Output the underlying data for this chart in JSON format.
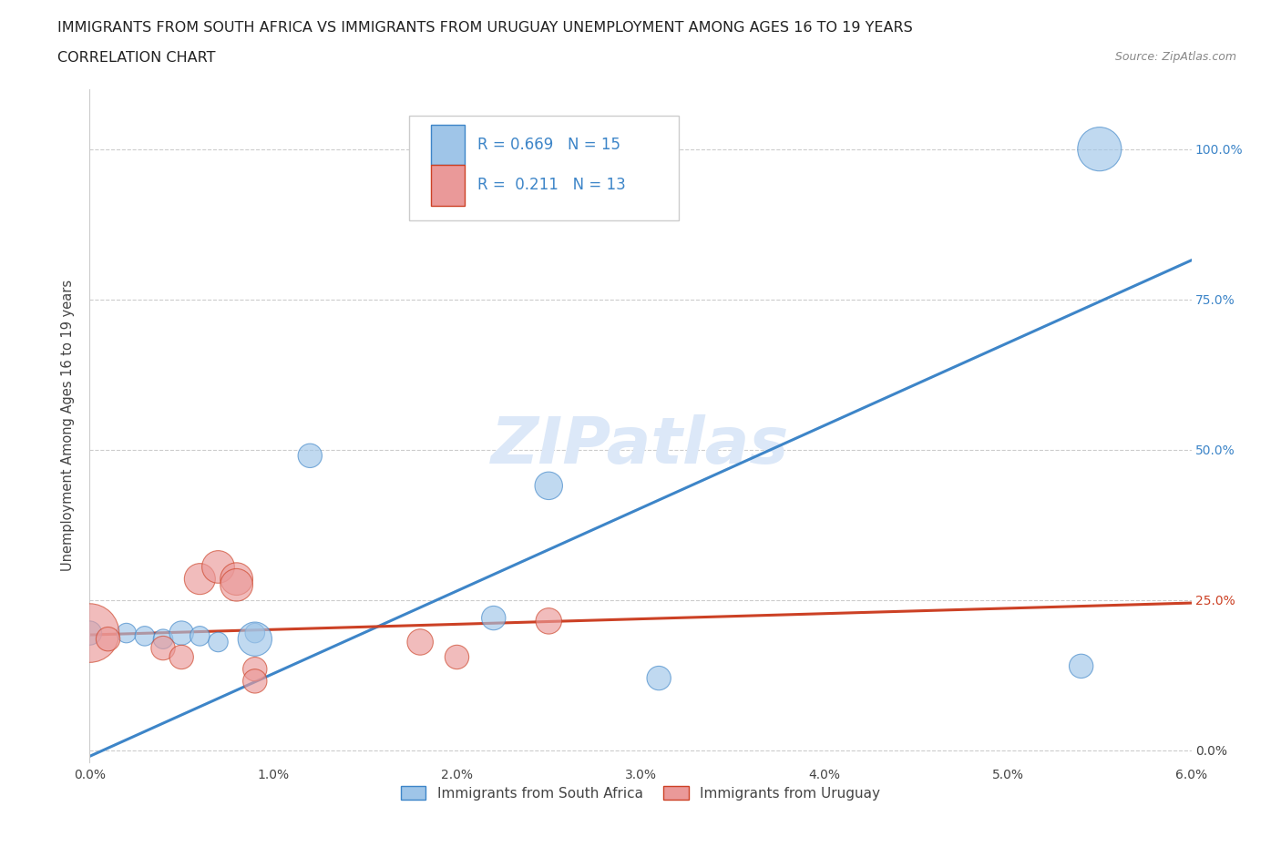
{
  "title_line1": "IMMIGRANTS FROM SOUTH AFRICA VS IMMIGRANTS FROM URUGUAY UNEMPLOYMENT AMONG AGES 16 TO 19 YEARS",
  "title_line2": "CORRELATION CHART",
  "source_text": "Source: ZipAtlas.com",
  "ylabel": "Unemployment Among Ages 16 to 19 years",
  "xlim": [
    0.0,
    0.06
  ],
  "ylim": [
    -0.02,
    1.1
  ],
  "xtick_labels": [
    "0.0%",
    "1.0%",
    "2.0%",
    "3.0%",
    "4.0%",
    "5.0%",
    "6.0%"
  ],
  "xtick_vals": [
    0.0,
    0.01,
    0.02,
    0.03,
    0.04,
    0.05,
    0.06
  ],
  "ytick_labels": [
    "0.0%",
    "25.0%",
    "50.0%",
    "75.0%",
    "100.0%"
  ],
  "ytick_vals": [
    0.0,
    0.25,
    0.5,
    0.75,
    1.0
  ],
  "blue_color": "#9fc5e8",
  "pink_color": "#ea9999",
  "blue_line_color": "#3d85c8",
  "pink_line_color": "#cc4125",
  "watermark_text": "ZIPatlas",
  "watermark_color": "#dce8f8",
  "legend_R1": "R = 0.669",
  "legend_N1": "N = 15",
  "legend_R2": "R =  0.211",
  "legend_N2": "N = 13",
  "blue_scatter_x": [
    0.0,
    0.002,
    0.003,
    0.004,
    0.005,
    0.006,
    0.007,
    0.009,
    0.009,
    0.012,
    0.022,
    0.025,
    0.031,
    0.054,
    0.055
  ],
  "blue_scatter_y": [
    0.195,
    0.195,
    0.19,
    0.185,
    0.195,
    0.19,
    0.18,
    0.195,
    0.185,
    0.49,
    0.22,
    0.44,
    0.12,
    0.14,
    1.0
  ],
  "blue_scatter_s": [
    30,
    20,
    20,
    20,
    30,
    20,
    20,
    20,
    60,
    30,
    30,
    40,
    30,
    30,
    100
  ],
  "pink_scatter_x": [
    0.0,
    0.001,
    0.004,
    0.005,
    0.006,
    0.007,
    0.008,
    0.008,
    0.009,
    0.009,
    0.018,
    0.02,
    0.025
  ],
  "pink_scatter_y": [
    0.195,
    0.185,
    0.17,
    0.155,
    0.285,
    0.305,
    0.285,
    0.275,
    0.135,
    0.115,
    0.18,
    0.155,
    0.215
  ],
  "pink_scatter_s": [
    180,
    30,
    30,
    30,
    50,
    55,
    55,
    55,
    30,
    30,
    35,
    30,
    35
  ],
  "blue_line_x": [
    0.0,
    0.06
  ],
  "blue_line_y": [
    -0.01,
    0.815
  ],
  "pink_line_x": [
    0.0,
    0.06
  ],
  "pink_line_y": [
    0.192,
    0.245
  ],
  "legend_label_blue": "Immigrants from South Africa",
  "legend_label_pink": "Immigrants from Uruguay",
  "title_fontsize": 11.5,
  "axis_label_fontsize": 10.5,
  "tick_fontsize": 10,
  "legend_fontsize": 12,
  "watermark_fontsize": 52,
  "source_fontsize": 9,
  "background_color": "#ffffff",
  "grid_color": "#cccccc",
  "blue_text_color": "#3d85c8",
  "pink_text_color": "#cc4125"
}
